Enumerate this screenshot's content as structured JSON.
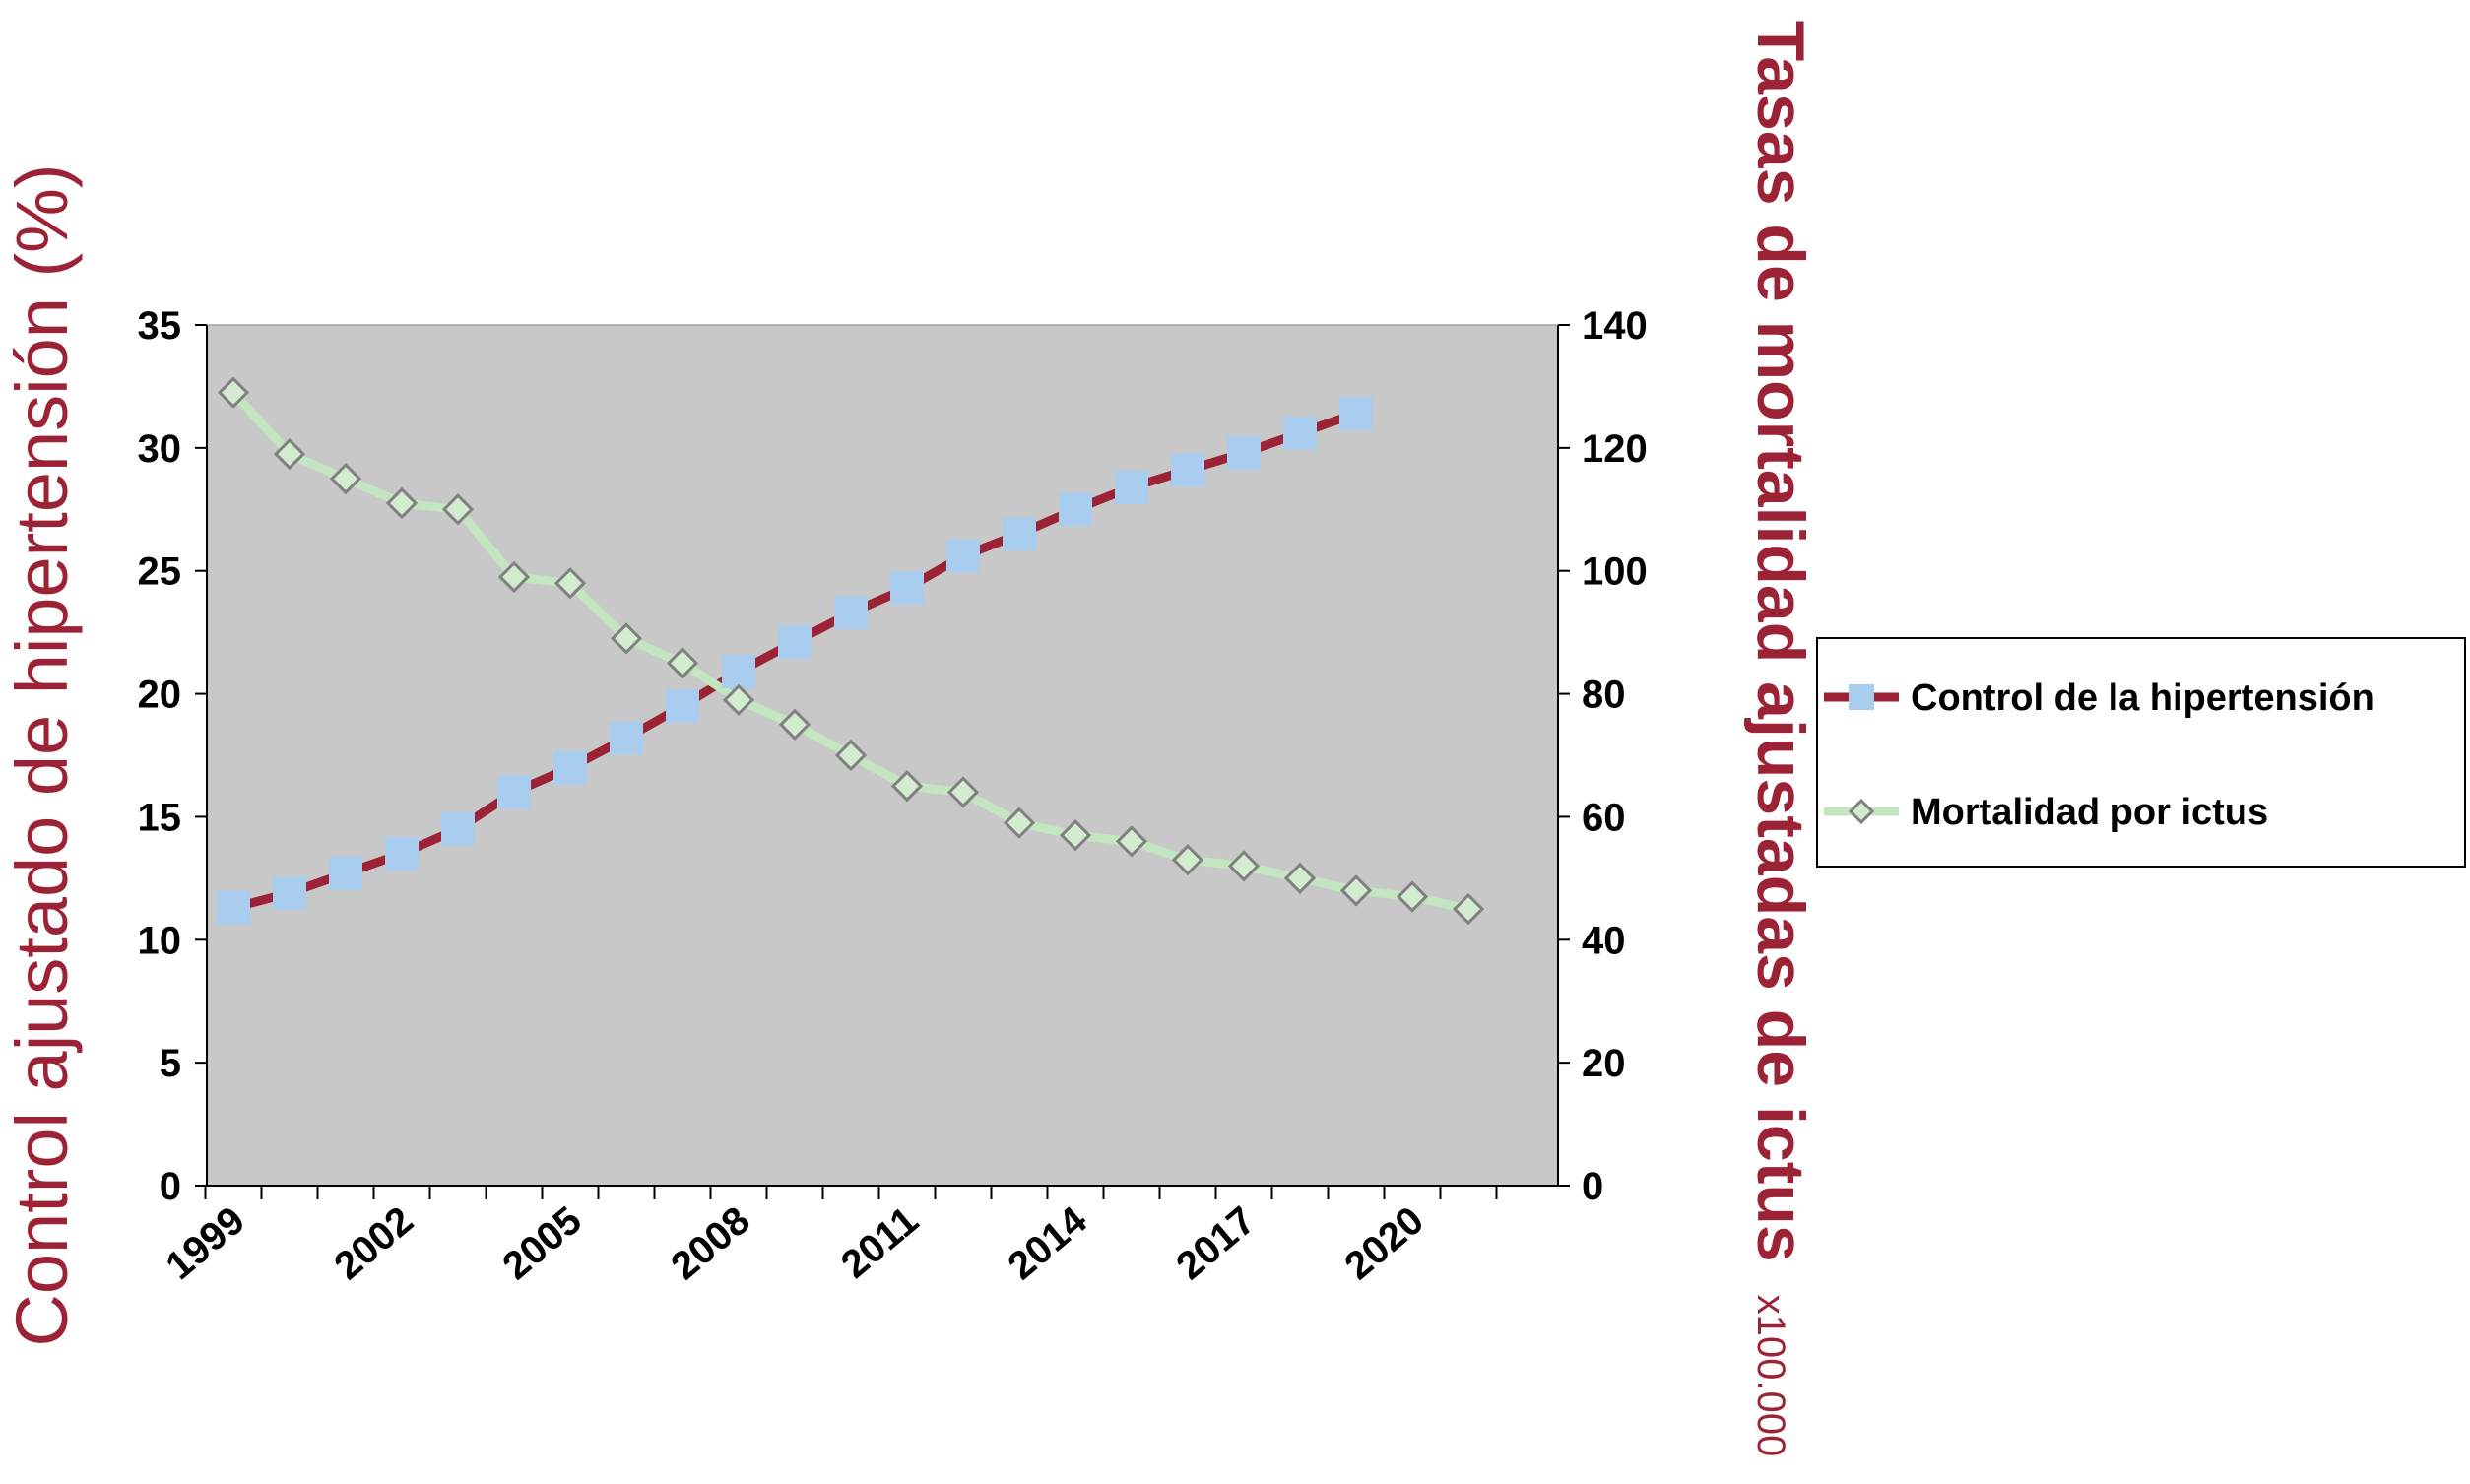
{
  "chart_data": {
    "type": "line",
    "title": "",
    "x": [
      1999,
      2000,
      2001,
      2002,
      2003,
      2004,
      2005,
      2006,
      2007,
      2008,
      2009,
      2010,
      2011,
      2012,
      2013,
      2014,
      2015,
      2016,
      2017,
      2018,
      2019,
      2020,
      2021
    ],
    "x_tick_labels": [
      "1999",
      "2002",
      "2005",
      "2008",
      "2011",
      "2014",
      "2017",
      "2020"
    ],
    "ylabel_left": "Control ajustado de hipertensión (%)",
    "ylabel_right": "Tasas de mortalidad ajustadas de ictus",
    "ylabel_right_unit": "x100.000",
    "ylim_left": [
      0,
      35
    ],
    "yticks_left": [
      "0",
      "5",
      "10",
      "15",
      "20",
      "25",
      "30",
      "35"
    ],
    "ylim_right": [
      0,
      140
    ],
    "yticks_right": [
      "0",
      "20",
      "40",
      "60",
      "80",
      "100",
      "120",
      "140"
    ],
    "plot_background": "#c8c8c8",
    "grid": false,
    "legend_position": "right",
    "series": [
      {
        "name": "Control de la hipertensión",
        "axis": "left",
        "line_color": "#9b2335",
        "marker": "square",
        "marker_color": "#a9cdef",
        "x": [
          1999,
          2000,
          2001,
          2002,
          2003,
          2004,
          2005,
          2006,
          2007,
          2008,
          2009,
          2010,
          2011,
          2012,
          2013,
          2014,
          2015,
          2016,
          2017,
          2018,
          2019
        ],
        "values": [
          11.3,
          11.9,
          12.7,
          13.5,
          14.5,
          16.0,
          17.0,
          18.2,
          19.5,
          20.9,
          22.1,
          23.3,
          24.3,
          25.6,
          26.5,
          27.5,
          28.4,
          29.1,
          29.8,
          30.6,
          31.4
        ]
      },
      {
        "name": "Mortalidad por ictus",
        "axis": "right",
        "line_color": "#c3e6c0",
        "marker": "diamond",
        "marker_color": "#d3ecd0",
        "marker_edge": "#808080",
        "x": [
          1999,
          2000,
          2001,
          2002,
          2003,
          2004,
          2005,
          2006,
          2007,
          2008,
          2009,
          2010,
          2011,
          2012,
          2013,
          2014,
          2015,
          2016,
          2017,
          2018,
          2019,
          2020,
          2021
        ],
        "values": [
          129,
          119,
          115,
          111,
          110,
          99,
          98,
          89,
          85,
          79,
          75,
          70,
          65,
          64,
          59,
          57,
          56,
          53,
          52,
          50,
          48,
          47,
          45
        ]
      }
    ]
  }
}
